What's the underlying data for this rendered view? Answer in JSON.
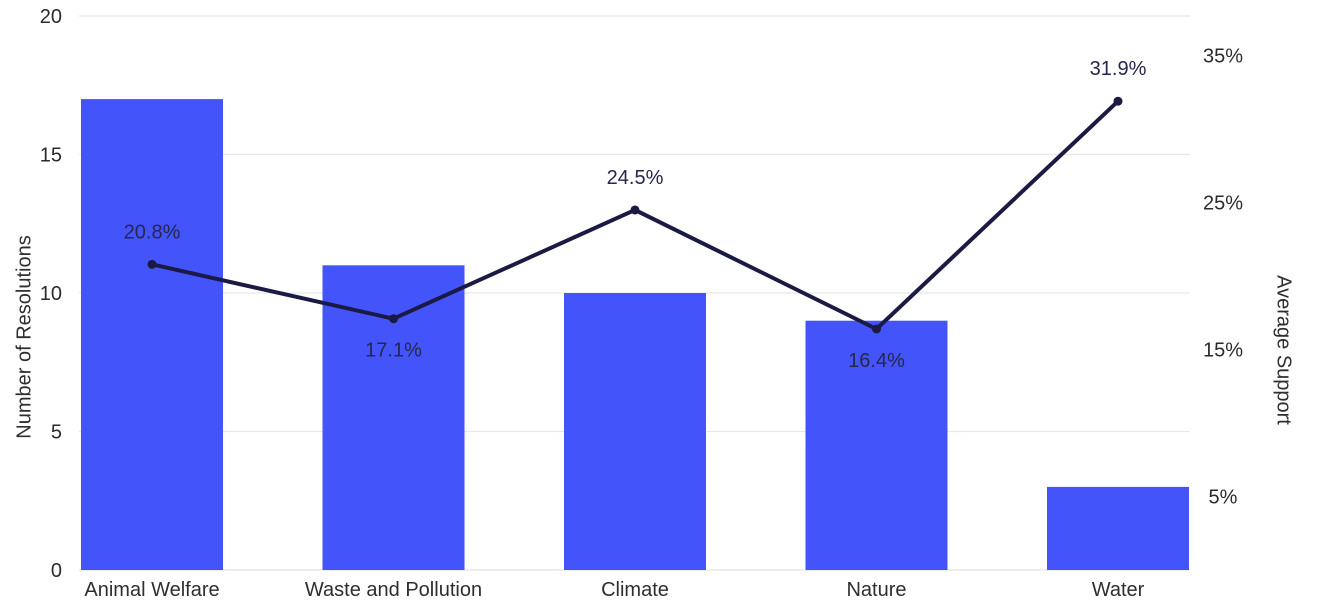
{
  "chart_data": {
    "type": "combo-bar-line",
    "title": "",
    "categories": [
      "Animal Welfare",
      "Waste and Pollution",
      "Climate",
      "Nature",
      "Water"
    ],
    "series": [
      {
        "name": "Number of Resolutions",
        "type": "bar",
        "axis": "left",
        "values": [
          17,
          11,
          10,
          9,
          3
        ],
        "color": "#4355FA"
      },
      {
        "name": "Average Support",
        "type": "line",
        "axis": "right",
        "values": [
          20.8,
          17.1,
          24.5,
          16.4,
          31.9
        ],
        "labels": [
          "20.8%",
          "17.1%",
          "24.5%",
          "16.4%",
          "31.9%"
        ],
        "label_positions": [
          "above",
          "below",
          "above",
          "below",
          "above"
        ],
        "color": "#1A1A44",
        "label_color": "#26264F",
        "marker": "dot"
      }
    ],
    "left_axis": {
      "title": "Number of Resolutions",
      "tick_values": [
        0,
        5,
        10,
        15,
        20
      ],
      "tick_labels": [
        "0",
        "5",
        "10",
        "15",
        "20"
      ],
      "range": [
        0,
        20
      ]
    },
    "right_axis": {
      "title": "Average Support",
      "tick_values": [
        5,
        15,
        25,
        35
      ],
      "tick_labels": [
        "5%",
        "15%",
        "25%",
        "35%"
      ],
      "range": [
        0,
        37.7
      ]
    },
    "grid": true,
    "legend_position": "none",
    "colors": {
      "background": "#FFFFFF",
      "gridline": "#E8E8E8",
      "axis_line": "#E3E3E3",
      "tick_label": "#2B2B2B",
      "category_label": "#2E2E2E",
      "axis_title": "#2E2E2E"
    }
  }
}
